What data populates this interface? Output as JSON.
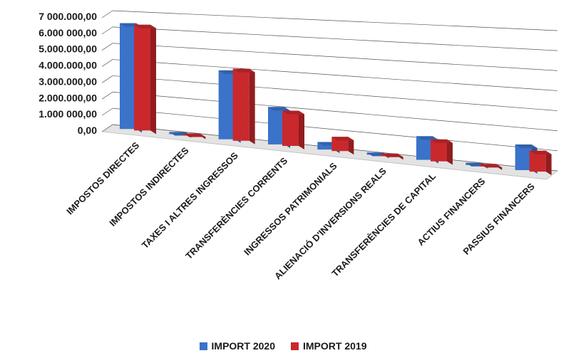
{
  "chart_data": {
    "type": "bar",
    "categories": [
      "IMPOSTOS DIRECTES",
      "IMPOSTOS INDIRECTES",
      "TAXES I ALTRES INGRESSOS",
      "TRANSFERÈNCIES CORRENTS",
      "INGRESSOS PATRIMONIALS",
      "ALIENACIÓ D'INVERSIONS REALS",
      "TRANSFERÈNCIES DE CAPITAL",
      "ACTIUS FINANCERS",
      "PASSIUS FINANCERS"
    ],
    "series": [
      {
        "name": "IMPORT 2020",
        "color": "#3a73c9",
        "values": [
          6450000,
          60000,
          4000000,
          2120000,
          420000,
          110000,
          1250000,
          80000,
          1300000
        ]
      },
      {
        "name": "IMPORT 2019",
        "color": "#c9282d",
        "values": [
          6400000,
          90000,
          4150000,
          1980000,
          780000,
          140000,
          1150000,
          130000,
          1050000
        ]
      }
    ],
    "y_ticks": [
      "0,00",
      "1.000 000,00",
      "2.000.000,00",
      "3.000.000,00",
      "4.000.000,00",
      "5.000.000,00",
      "6.000 000,00",
      "7 000.000,00"
    ],
    "ylim": [
      0,
      7000000
    ],
    "grid": true,
    "legend_position": "bottom",
    "title": "",
    "xlabel": "",
    "ylabel": ""
  }
}
